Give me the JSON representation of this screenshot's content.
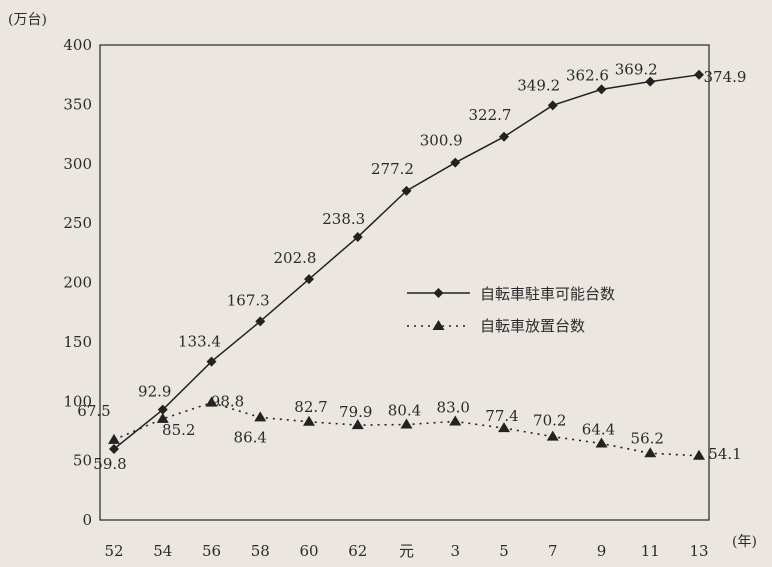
{
  "chart_data": {
    "type": "line",
    "ylabel": "(万台)",
    "xlabel": "(年)",
    "ylim": [
      0,
      400
    ],
    "yticks": [
      0,
      50,
      100,
      150,
      200,
      250,
      300,
      350,
      400
    ],
    "categories": [
      "52",
      "54",
      "56",
      "58",
      "60",
      "62",
      "元",
      "3",
      "5",
      "7",
      "9",
      "11",
      "13"
    ],
    "grid": false,
    "legend_position": "center-right",
    "series": [
      {
        "name": "自転車駐車可能台数",
        "marker": "diamond",
        "line_style": "solid",
        "values": [
          59.8,
          92.9,
          133.4,
          167.3,
          202.8,
          238.3,
          277.2,
          300.9,
          322.7,
          349.2,
          362.6,
          369.2,
          374.9
        ],
        "labels": [
          "59.8",
          "92.9",
          "133.4",
          "167.3",
          "202.8",
          "238.3",
          "277.2",
          "300.9",
          "322.7",
          "349.2",
          "362.6",
          "369.2",
          "374.9"
        ]
      },
      {
        "name": "自転車放置台数",
        "marker": "triangle",
        "line_style": "dotted",
        "values": [
          67.5,
          85.2,
          98.8,
          86.4,
          82.7,
          79.9,
          80.4,
          83.0,
          77.4,
          70.2,
          64.4,
          56.2,
          54.1
        ],
        "labels": [
          "67.5",
          "85.2",
          "98.8",
          "86.4",
          "82.7",
          "79.9",
          "80.4",
          "83.0",
          "77.4",
          "70.2",
          "64.4",
          "56.2",
          "54.1"
        ]
      }
    ]
  }
}
